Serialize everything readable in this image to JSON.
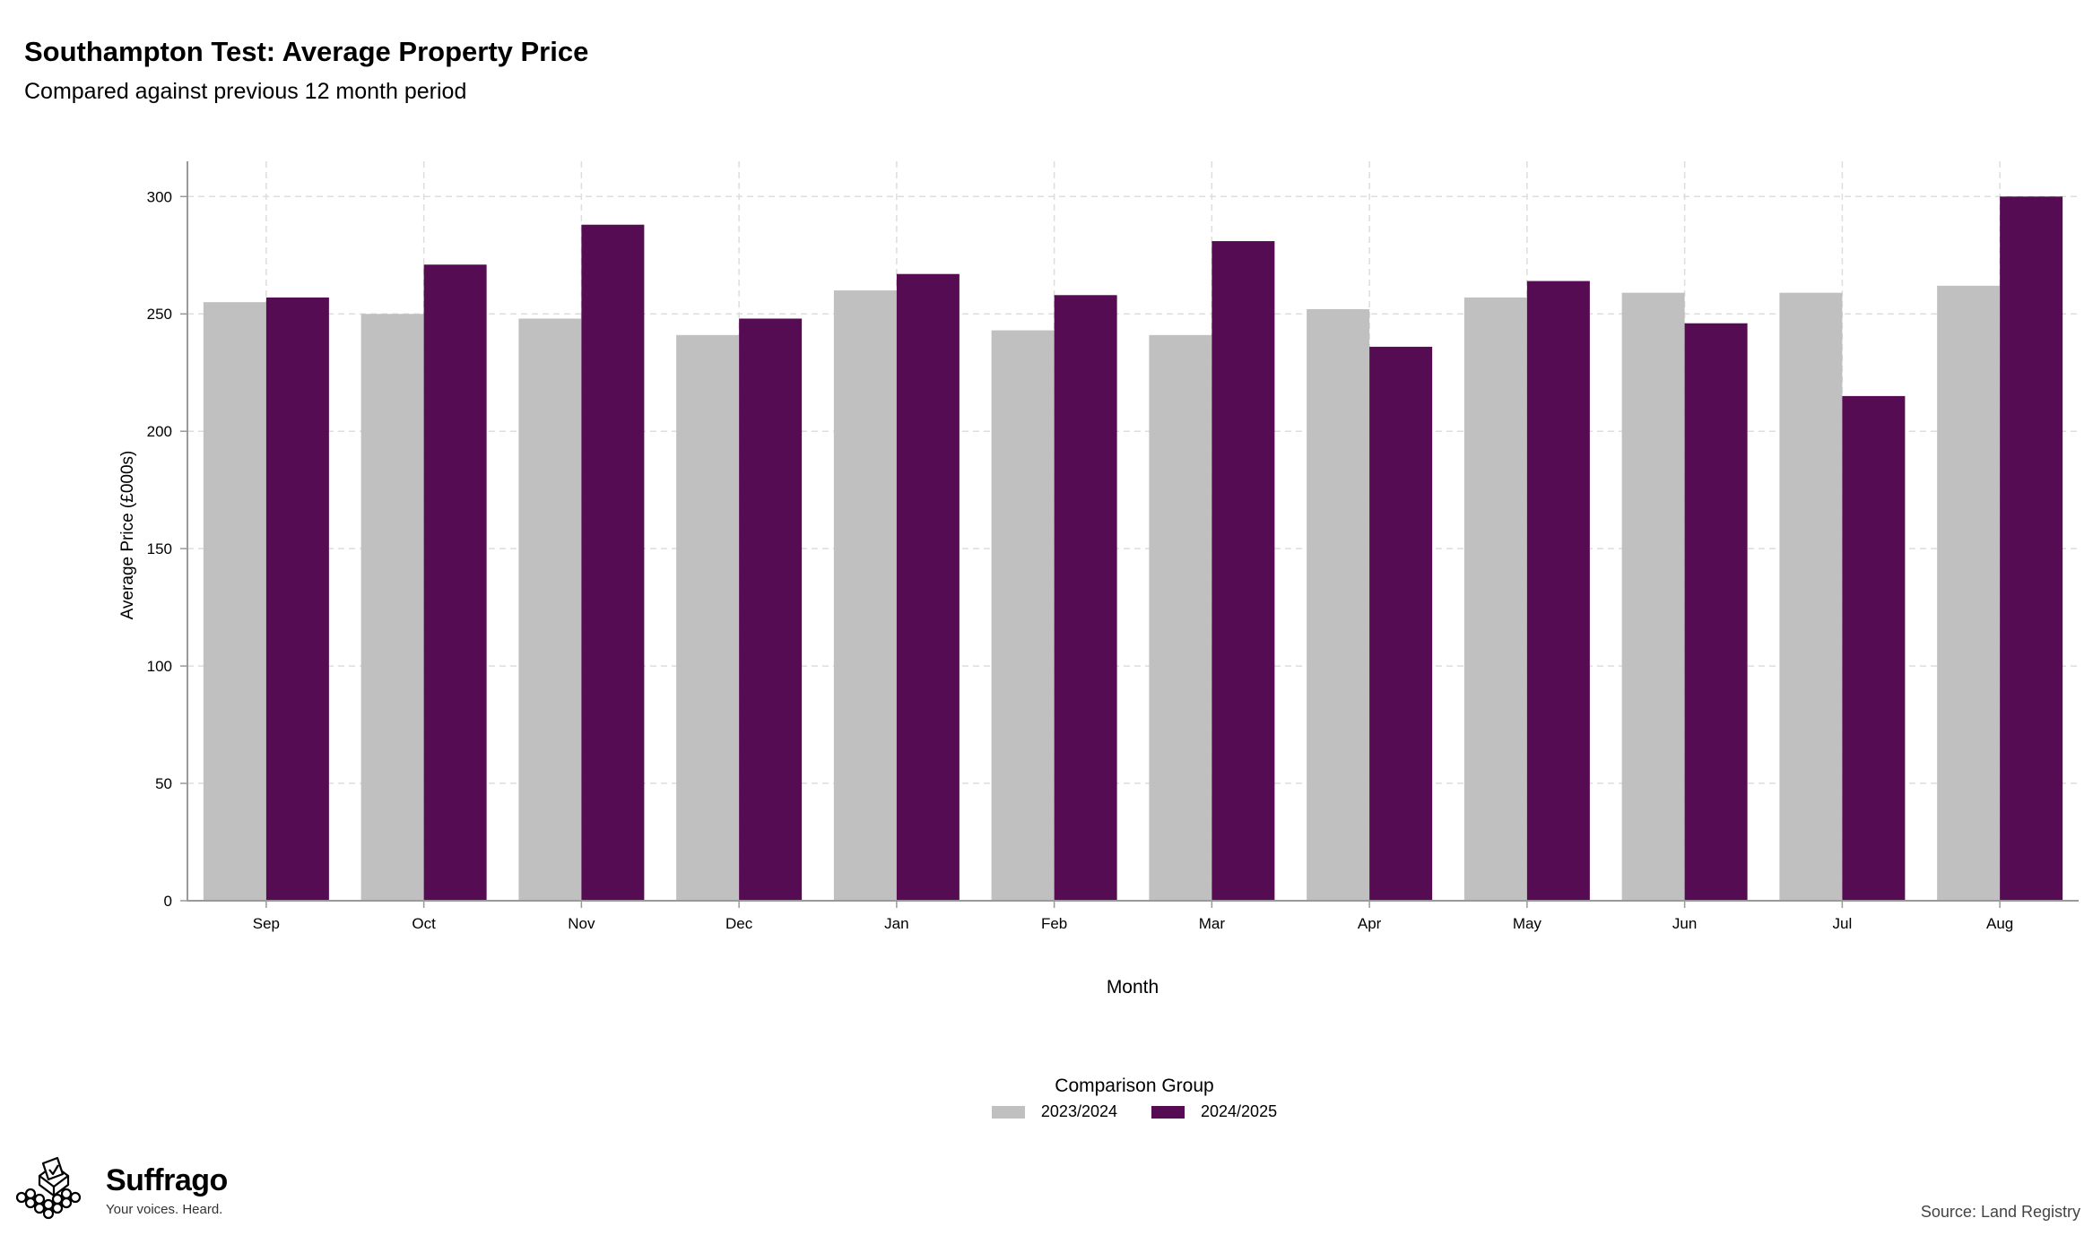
{
  "header": {
    "title": "Southampton Test: Average Property Price",
    "subtitle": "Compared against previous 12 month period"
  },
  "colors": {
    "previous": "#c0c0c0",
    "current": "#560c52",
    "grid": "#dddddd",
    "axis": "#999999"
  },
  "chart_data": {
    "type": "bar",
    "xlabel": "Month",
    "ylabel": "Average Price (£000s)",
    "ylim": [
      0,
      315
    ],
    "yticks": [
      0,
      50,
      100,
      150,
      200,
      250,
      300
    ],
    "grid": true,
    "categories": [
      "Sep",
      "Oct",
      "Nov",
      "Dec",
      "Jan",
      "Feb",
      "Mar",
      "Apr",
      "May",
      "Jun",
      "Jul",
      "Aug"
    ],
    "series": [
      {
        "name": "2023/2024",
        "values": [
          255,
          250,
          248,
          241,
          260,
          243,
          241,
          252,
          257,
          259,
          259,
          262
        ]
      },
      {
        "name": "2024/2025",
        "values": [
          257,
          271,
          288,
          248,
          267,
          258,
          281,
          236,
          264,
          246,
          215,
          300
        ]
      }
    ],
    "legend": {
      "title": "Comparison Group",
      "position": "bottom"
    }
  },
  "footer": {
    "brand": "Suffrago",
    "tagline": "Your voices. Heard.",
    "source": "Source: Land Registry"
  }
}
